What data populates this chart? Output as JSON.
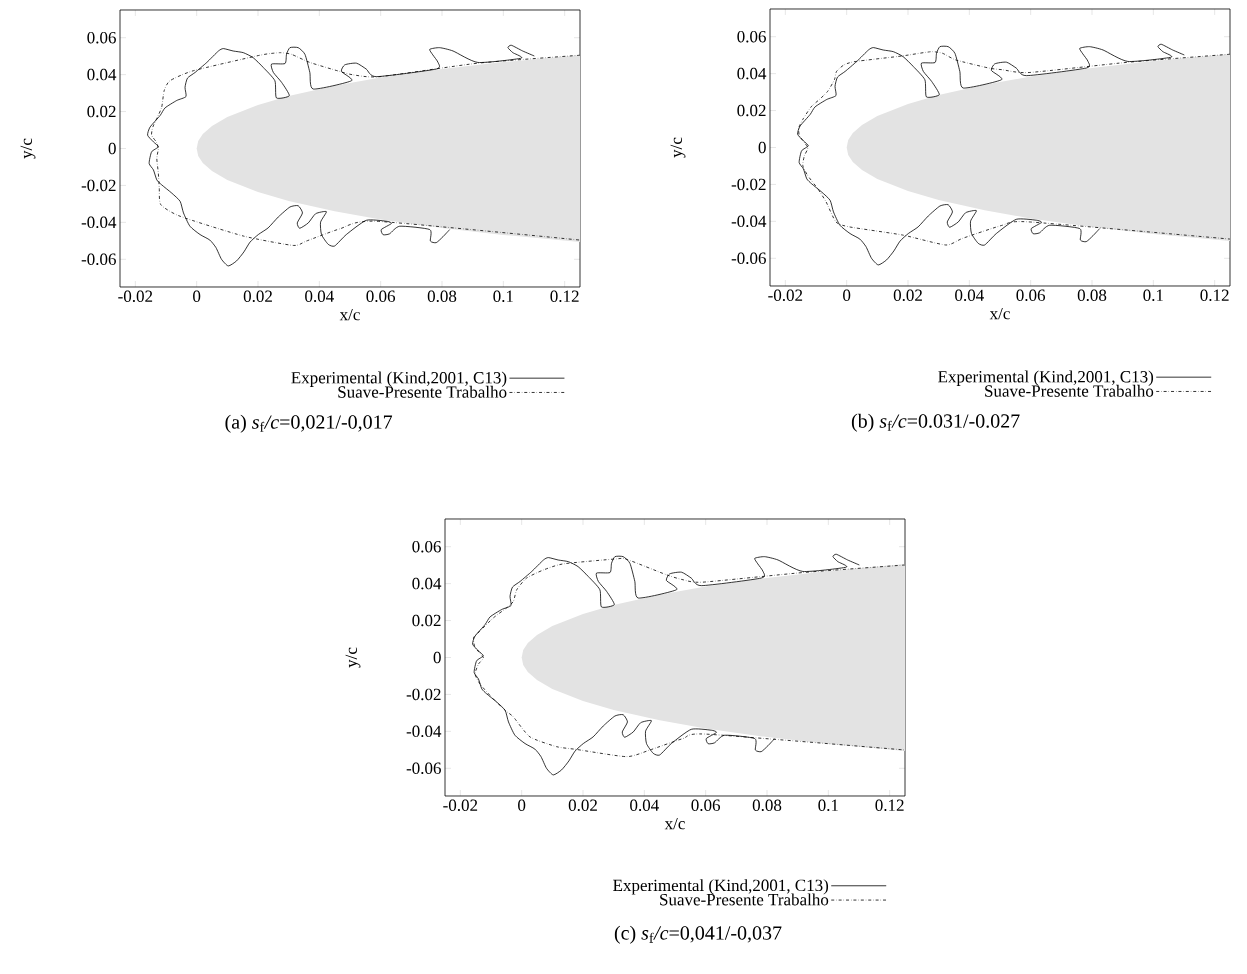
{
  "chart_data": [
    {
      "type": "line",
      "title": "(a) *s*$_{f}$*/c*=0,021/-0,017",
      "xlabel": "x/c",
      "ylabel": "y/c",
      "xlim": [
        -0.025,
        0.125
      ],
      "ylim": [
        -0.075,
        0.075
      ],
      "xticks": [
        -0.02,
        0,
        0.02,
        0.04,
        0.06,
        0.08,
        0.1,
        0.12
      ],
      "yticks": [
        -0.06,
        -0.04,
        -0.02,
        0,
        0.02,
        0.04,
        0.06
      ],
      "legend": "bottom",
      "series": [
        {
          "type": "area",
          "color": "#e3e3e3",
          "x": [
            0.125,
            0.1,
            0.08,
            0.06,
            0.045,
            0.03,
            0.02,
            0.01,
            0.005,
            0.002,
            0.0005,
            0,
            0.0005,
            0.002,
            0.005,
            0.01,
            0.02,
            0.03,
            0.045,
            0.06,
            0.08,
            0.1,
            0.125
          ],
          "values": [
            0.0506,
            0.0468,
            0.0431,
            0.0384,
            0.034,
            0.0284,
            0.0236,
            0.017,
            0.0122,
            0.0078,
            0.004,
            0,
            -0.004,
            -0.0078,
            -0.0122,
            -0.017,
            -0.0236,
            -0.0284,
            -0.034,
            -0.0384,
            -0.0431,
            -0.0468,
            -0.0506
          ]
        },
        {
          "type": "line",
          "name": "Experimental (Kind,2001, C13)",
          "color": "#000000",
          "line_style": "solid",
          "x": [
            0.1101,
            0.1063,
            0.1026,
            0.1015,
            0.1031,
            0.1058,
            0.0917,
            0.0836,
            0.0792,
            0.076,
            0.077,
            0.0787,
            0.0781,
            0.0586,
            0.0553,
            0.0521,
            0.0483,
            0.0472,
            0.0505,
            0.038,
            0.0369,
            0.0353,
            0.0331,
            0.0304,
            0.0293,
            0.0288,
            0.0244,
            0.025,
            0.0277,
            0.0302,
            0.026,
            0.0255,
            0.0217,
            0.0184,
            0.0152,
            0.0119,
            0.0087,
            0.0071,
            0.0033,
            -0.0005,
            -0.003,
            -0.0038,
            -0.0035,
            -0.0065,
            -0.0103,
            -0.0119,
            -0.0152,
            -0.016,
            -0.0141,
            -0.0125,
            -0.0147,
            -0.0155,
            -0.0141,
            -0.013,
            -0.0114,
            -0.0081,
            -0.0054,
            -0.0043,
            -0.0022,
            0.0011,
            0.0043,
            0.0063,
            0.0081,
            0.0103,
            0.013,
            0.0154,
            0.0174,
            0.0201,
            0.0233,
            0.0266,
            0.0304,
            0.0331,
            0.0345,
            0.0328,
            0.0336,
            0.0364,
            0.0388,
            0.0423,
            0.0404,
            0.0407,
            0.0429,
            0.045,
            0.0488,
            0.0553,
            0.0619,
            0.0635,
            0.0602,
            0.0608,
            0.0629,
            0.0662,
            0.076,
            0.0762,
            0.0781,
            0.0803,
            0.0825
          ],
          "values": [
            0.0501,
            0.0528,
            0.0559,
            0.0546,
            0.0519,
            0.0489,
            0.0466,
            0.0528,
            0.0546,
            0.0537,
            0.0507,
            0.0466,
            0.043,
            0.0389,
            0.043,
            0.0462,
            0.0453,
            0.0417,
            0.0367,
            0.0322,
            0.0412,
            0.051,
            0.0546,
            0.0546,
            0.051,
            0.046,
            0.0457,
            0.0412,
            0.0358,
            0.0286,
            0.0274,
            0.0367,
            0.0439,
            0.0492,
            0.0519,
            0.0528,
            0.0541,
            0.0528,
            0.0466,
            0.0412,
            0.0381,
            0.0331,
            0.0281,
            0.026,
            0.022,
            0.0179,
            0.0116,
            0.0072,
            0.0036,
            0.0009,
            -0.0018,
            -0.0081,
            -0.0116,
            -0.017,
            -0.0197,
            -0.0242,
            -0.0286,
            -0.0349,
            -0.0421,
            -0.0466,
            -0.0496,
            -0.0537,
            -0.06,
            -0.0636,
            -0.0609,
            -0.056,
            -0.0507,
            -0.0466,
            -0.043,
            -0.0371,
            -0.0317,
            -0.031,
            -0.0349,
            -0.0403,
            -0.0432,
            -0.0403,
            -0.0353,
            -0.0342,
            -0.0399,
            -0.0466,
            -0.0519,
            -0.0528,
            -0.0466,
            -0.0389,
            -0.0394,
            -0.0406,
            -0.0439,
            -0.0467,
            -0.0462,
            -0.0421,
            -0.0439,
            -0.0501,
            -0.051,
            -0.0478,
            -0.0439
          ]
        },
        {
          "type": "line",
          "name": "Suave-Presente Trabalho",
          "color": "#000000",
          "line_style": "dashdot",
          "x": [
            0.125,
            0.0917,
            0.0597,
            0.051,
            0.0467,
            0.0369,
            0.0309,
            0.0271,
            0.0206,
            -0.0011,
            -0.0087,
            -0.0106,
            -0.0114,
            -0.0128,
            -0.0143,
            -0.0147,
            -0.0132,
            -0.0125,
            -0.013,
            -0.0125,
            -0.0122,
            -0.0117,
            -0.0054,
            0.0152,
            0.0315,
            0.0358,
            0.0467,
            0.0586,
            0.125
          ],
          "values": [
            0.0505,
            0.0462,
            0.0389,
            0.0399,
            0.0417,
            0.0466,
            0.051,
            0.0519,
            0.0505,
            0.0421,
            0.0367,
            0.0313,
            0.0224,
            0.017,
            0.0116,
            0.0072,
            0.0036,
            0,
            -0.0054,
            -0.0134,
            -0.0215,
            -0.0304,
            -0.0367,
            -0.0474,
            -0.0525,
            -0.0501,
            -0.0435,
            -0.0394,
            -0.0496
          ]
        }
      ]
    },
    {
      "type": "line",
      "title": "(b) *s*$_{f}$*/c*=0.031/-0.027",
      "xlabel": "x/c",
      "ylabel": "y/c",
      "xlim": [
        -0.025,
        0.125
      ],
      "ylim": [
        -0.075,
        0.075
      ],
      "xticks": [
        -0.02,
        0,
        0.02,
        0.04,
        0.06,
        0.08,
        0.1,
        0.12
      ],
      "yticks": [
        -0.06,
        -0.04,
        -0.02,
        0,
        0.02,
        0.04,
        0.06
      ],
      "legend": "bottom",
      "series": [
        {
          "type": "area",
          "color": "#e3e3e3",
          "x": [
            0.125,
            0.1,
            0.08,
            0.06,
            0.045,
            0.03,
            0.02,
            0.01,
            0.005,
            0.002,
            0.0005,
            0,
            0.0005,
            0.002,
            0.005,
            0.01,
            0.02,
            0.03,
            0.045,
            0.06,
            0.08,
            0.1,
            0.125
          ],
          "values": [
            0.0506,
            0.0468,
            0.0431,
            0.0384,
            0.034,
            0.0284,
            0.0236,
            0.017,
            0.0122,
            0.0078,
            0.004,
            0,
            -0.004,
            -0.0078,
            -0.0122,
            -0.017,
            -0.0236,
            -0.0284,
            -0.034,
            -0.0384,
            -0.0431,
            -0.0468,
            -0.0506
          ]
        },
        {
          "type": "line",
          "name": "Experimental (Kind,2001, C13)",
          "color": "#000000",
          "line_style": "solid",
          "x": [
            0.1101,
            0.1063,
            0.1026,
            0.1015,
            0.1031,
            0.1058,
            0.0917,
            0.0836,
            0.0792,
            0.076,
            0.077,
            0.0787,
            0.0781,
            0.0586,
            0.0553,
            0.0521,
            0.0483,
            0.0472,
            0.0505,
            0.038,
            0.0369,
            0.0353,
            0.0331,
            0.0304,
            0.0293,
            0.0288,
            0.0244,
            0.025,
            0.0277,
            0.0302,
            0.026,
            0.0255,
            0.0217,
            0.0184,
            0.0152,
            0.0119,
            0.0087,
            0.0071,
            0.0033,
            -0.0005,
            -0.003,
            -0.0038,
            -0.0035,
            -0.0065,
            -0.0103,
            -0.0119,
            -0.0152,
            -0.016,
            -0.0141,
            -0.0125,
            -0.0147,
            -0.0155,
            -0.0141,
            -0.013,
            -0.0114,
            -0.0081,
            -0.0054,
            -0.0043,
            -0.0022,
            0.0011,
            0.0043,
            0.0063,
            0.0081,
            0.0103,
            0.013,
            0.0154,
            0.0174,
            0.0201,
            0.0233,
            0.0266,
            0.0304,
            0.0331,
            0.0345,
            0.0328,
            0.0336,
            0.0364,
            0.0388,
            0.0423,
            0.0404,
            0.0407,
            0.0429,
            0.045,
            0.0488,
            0.0553,
            0.0619,
            0.0635,
            0.0602,
            0.0608,
            0.0629,
            0.0662,
            0.076,
            0.0762,
            0.0781,
            0.0803,
            0.0825
          ],
          "values": [
            0.0501,
            0.0528,
            0.0559,
            0.0546,
            0.0519,
            0.0489,
            0.0466,
            0.0528,
            0.0546,
            0.0537,
            0.0507,
            0.0466,
            0.043,
            0.0389,
            0.043,
            0.0462,
            0.0453,
            0.0417,
            0.0367,
            0.0322,
            0.0412,
            0.051,
            0.0546,
            0.0546,
            0.051,
            0.046,
            0.0457,
            0.0412,
            0.0358,
            0.0286,
            0.0274,
            0.0367,
            0.0439,
            0.0492,
            0.0519,
            0.0528,
            0.0541,
            0.0528,
            0.0466,
            0.0412,
            0.0381,
            0.0331,
            0.0281,
            0.026,
            0.022,
            0.0179,
            0.0116,
            0.0072,
            0.0036,
            0.0009,
            -0.0018,
            -0.0081,
            -0.0116,
            -0.017,
            -0.0197,
            -0.0242,
            -0.0286,
            -0.0349,
            -0.0421,
            -0.0466,
            -0.0496,
            -0.0537,
            -0.06,
            -0.0636,
            -0.0609,
            -0.056,
            -0.0507,
            -0.0466,
            -0.043,
            -0.0371,
            -0.0317,
            -0.031,
            -0.0349,
            -0.0403,
            -0.0432,
            -0.0403,
            -0.0353,
            -0.0342,
            -0.0399,
            -0.0466,
            -0.0519,
            -0.0528,
            -0.0466,
            -0.0389,
            -0.0394,
            -0.0406,
            -0.0439,
            -0.0467,
            -0.0462,
            -0.0421,
            -0.0439,
            -0.0501,
            -0.051,
            -0.0478,
            -0.0439
          ]
        },
        {
          "type": "line",
          "name": "Suave-Presente Trabalho",
          "color": "#000000",
          "line_style": "dashdot",
          "x": [
            0.125,
            0.092,
            0.0595,
            0.0508,
            0.0464,
            0.0356,
            0.0313,
            0.0275,
            0.0182,
            0.003,
            -0.0008,
            -0.0033,
            -0.004,
            -0.0062,
            -0.0089,
            -0.0116,
            -0.0143,
            -0.0156,
            -0.0154,
            -0.0127,
            -0.0138,
            -0.0143,
            -0.0127,
            -0.0094,
            -0.0067,
            -0.0035,
            0.0009,
            0.0182,
            0.0323,
            0.0378,
            0.0508,
            0.0595,
            0.125
          ],
          "values": [
            0.0505,
            0.0462,
            0.0406,
            0.0421,
            0.043,
            0.0474,
            0.051,
            0.0519,
            0.0496,
            0.0466,
            0.0448,
            0.0412,
            0.0367,
            0.0304,
            0.026,
            0.022,
            0.0152,
            0.0107,
            0.0063,
            0,
            -0.0045,
            -0.0098,
            -0.0152,
            -0.0224,
            -0.0295,
            -0.0403,
            -0.043,
            -0.0474,
            -0.0528,
            -0.0492,
            -0.0421,
            -0.0403,
            -0.0496
          ]
        }
      ]
    },
    {
      "type": "line",
      "title": "(c) *s*$_{f}$*/c*=0,041/-0,037",
      "xlabel": "x/c",
      "ylabel": "y/c",
      "xlim": [
        -0.025,
        0.125
      ],
      "ylim": [
        -0.075,
        0.075
      ],
      "xticks": [
        -0.02,
        0,
        0.02,
        0.04,
        0.06,
        0.08,
        0.1,
        0.12
      ],
      "yticks": [
        -0.06,
        -0.04,
        -0.02,
        0,
        0.02,
        0.04,
        0.06
      ],
      "legend": "bottom",
      "series": [
        {
          "type": "area",
          "color": "#e3e3e3",
          "x": [
            0.125,
            0.1,
            0.08,
            0.06,
            0.045,
            0.03,
            0.02,
            0.01,
            0.005,
            0.002,
            0.0005,
            0,
            0.0005,
            0.002,
            0.005,
            0.01,
            0.02,
            0.03,
            0.045,
            0.06,
            0.08,
            0.1,
            0.125
          ],
          "values": [
            0.0506,
            0.0468,
            0.0431,
            0.0384,
            0.034,
            0.0284,
            0.0236,
            0.017,
            0.0122,
            0.0078,
            0.004,
            0,
            -0.004,
            -0.0078,
            -0.0122,
            -0.017,
            -0.0236,
            -0.0284,
            -0.034,
            -0.0384,
            -0.0431,
            -0.0468,
            -0.0506
          ]
        },
        {
          "type": "line",
          "name": "Experimental (Kind,2001, C13)",
          "color": "#000000",
          "line_style": "solid",
          "x": [
            0.1101,
            0.1063,
            0.1026,
            0.1015,
            0.1031,
            0.1058,
            0.0917,
            0.0836,
            0.0792,
            0.076,
            0.077,
            0.0787,
            0.0781,
            0.0586,
            0.0553,
            0.0521,
            0.0483,
            0.0472,
            0.0505,
            0.038,
            0.0369,
            0.0353,
            0.0331,
            0.0304,
            0.0293,
            0.0288,
            0.0244,
            0.025,
            0.0277,
            0.0302,
            0.026,
            0.0255,
            0.0217,
            0.0184,
            0.0152,
            0.0119,
            0.0087,
            0.0071,
            0.0033,
            -0.0005,
            -0.003,
            -0.0038,
            -0.0035,
            -0.0065,
            -0.0103,
            -0.0119,
            -0.0152,
            -0.016,
            -0.0141,
            -0.0125,
            -0.0147,
            -0.0155,
            -0.0141,
            -0.013,
            -0.0114,
            -0.0081,
            -0.0054,
            -0.0043,
            -0.0022,
            0.0011,
            0.0043,
            0.0063,
            0.0081,
            0.0103,
            0.013,
            0.0154,
            0.0174,
            0.0201,
            0.0233,
            0.0266,
            0.0304,
            0.0331,
            0.0345,
            0.0328,
            0.0336,
            0.0364,
            0.0388,
            0.0423,
            0.0404,
            0.0407,
            0.0429,
            0.045,
            0.0488,
            0.0553,
            0.0619,
            0.0635,
            0.0602,
            0.0608,
            0.0629,
            0.0662,
            0.076,
            0.0762,
            0.0781,
            0.0803,
            0.0825
          ],
          "values": [
            0.0501,
            0.0528,
            0.0559,
            0.0546,
            0.0519,
            0.0489,
            0.0466,
            0.0528,
            0.0546,
            0.0537,
            0.0507,
            0.0466,
            0.043,
            0.0389,
            0.043,
            0.0462,
            0.0453,
            0.0417,
            0.0367,
            0.0322,
            0.0412,
            0.051,
            0.0546,
            0.0546,
            0.051,
            0.046,
            0.0457,
            0.0412,
            0.0358,
            0.0286,
            0.0274,
            0.0367,
            0.0439,
            0.0492,
            0.0519,
            0.0528,
            0.0541,
            0.0528,
            0.0466,
            0.0412,
            0.0381,
            0.0331,
            0.0281,
            0.026,
            0.022,
            0.0179,
            0.0116,
            0.0072,
            0.0036,
            0.0009,
            -0.0018,
            -0.0081,
            -0.0116,
            -0.017,
            -0.0197,
            -0.0242,
            -0.0286,
            -0.0349,
            -0.0421,
            -0.0466,
            -0.0496,
            -0.0537,
            -0.06,
            -0.0636,
            -0.0609,
            -0.056,
            -0.0507,
            -0.0466,
            -0.043,
            -0.0371,
            -0.0317,
            -0.031,
            -0.0349,
            -0.0403,
            -0.0432,
            -0.0403,
            -0.0353,
            -0.0342,
            -0.0399,
            -0.0466,
            -0.0519,
            -0.0528,
            -0.0466,
            -0.0389,
            -0.0394,
            -0.0406,
            -0.0439,
            -0.0467,
            -0.0462,
            -0.0421,
            -0.0439,
            -0.0501,
            -0.051,
            -0.0478,
            -0.0439
          ]
        },
        {
          "type": "line",
          "name": "Suave-Presente Trabalho",
          "color": "#000000",
          "line_style": "dashdot",
          "x": [
            0.125,
            0.0917,
            0.0591,
            0.0526,
            0.0472,
            0.0342,
            0.0309,
            0.0136,
            0.0071,
            0.0016,
            -0.0016,
            -0.0027,
            -0.0049,
            -0.0092,
            -0.0136,
            -0.0157,
            -0.0152,
            -0.0125,
            -0.0141,
            -0.0152,
            -0.0136,
            -0.0098,
            -0.0054,
            -0.0027,
            0.0027,
            0.0114,
            0.0179,
            0.0342,
            0.0418,
            0.0526,
            0.0602,
            0.125
          ],
          "values": [
            0.0501,
            0.046,
            0.0408,
            0.0421,
            0.0448,
            0.0532,
            0.0534,
            0.0507,
            0.0474,
            0.043,
            0.0367,
            0.0304,
            0.0269,
            0.0215,
            0.0143,
            0.0107,
            0.0054,
            0,
            -0.0036,
            -0.009,
            -0.0143,
            -0.0215,
            -0.0286,
            -0.0322,
            -0.043,
            -0.0483,
            -0.0498,
            -0.0537,
            -0.0501,
            -0.0439,
            -0.0415,
            -0.0501
          ]
        }
      ]
    }
  ]
}
